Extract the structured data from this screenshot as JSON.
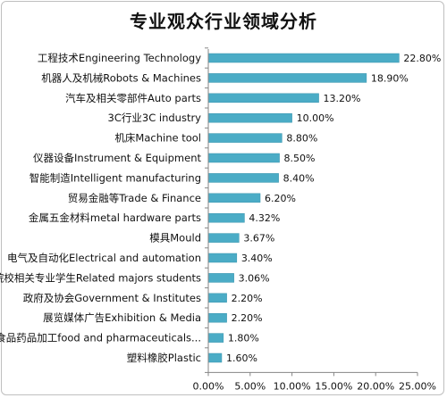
{
  "chart_data": {
    "type": "bar",
    "orientation": "horizontal",
    "title": "专业观众行业领域分析",
    "categories": [
      "工程技术Engineering Technology",
      "机器人及机械Robots & Machines",
      "汽车及相关零部件Auto parts",
      "3C行业3C industry",
      "机床Machine tool",
      "仪器设备Instrument & Equipment",
      "智能制造Intelligent manufacturing",
      "贸易金融等Trade & Finance",
      "金属五金材料metal hardware parts",
      "模具Mould",
      "电气及自动化Electrical and automation",
      "院校相关专业学生Related majors students",
      "政府及协会Government & Institutes",
      "展览媒体广告Exhibition & Media",
      "食品药品加工food and pharmaceuticals...",
      "塑料橡胶Plastic"
    ],
    "values": [
      22.8,
      18.9,
      13.2,
      10.0,
      8.8,
      8.5,
      8.4,
      6.2,
      4.32,
      3.67,
      3.4,
      3.06,
      2.2,
      2.2,
      1.8,
      1.6
    ],
    "data_labels": [
      "22.80%",
      "18.90%",
      "13.20%",
      "10.00%",
      "8.80%",
      "8.50%",
      "8.40%",
      "6.20%",
      "4.32%",
      "3.67%",
      "3.40%",
      "3.06%",
      "2.20%",
      "2.20%",
      "1.80%",
      "1.60%"
    ],
    "xlim": [
      0,
      25
    ],
    "x_ticks": [
      0,
      5,
      10,
      15,
      20,
      25
    ],
    "x_tick_labels": [
      "0.00%",
      "5.00%",
      "10.00%",
      "15.00%",
      "20.00%",
      "25.00%"
    ],
    "xlabel": "",
    "ylabel": "",
    "grid": false,
    "legend": "none",
    "bar_color": "#4bacc6"
  }
}
